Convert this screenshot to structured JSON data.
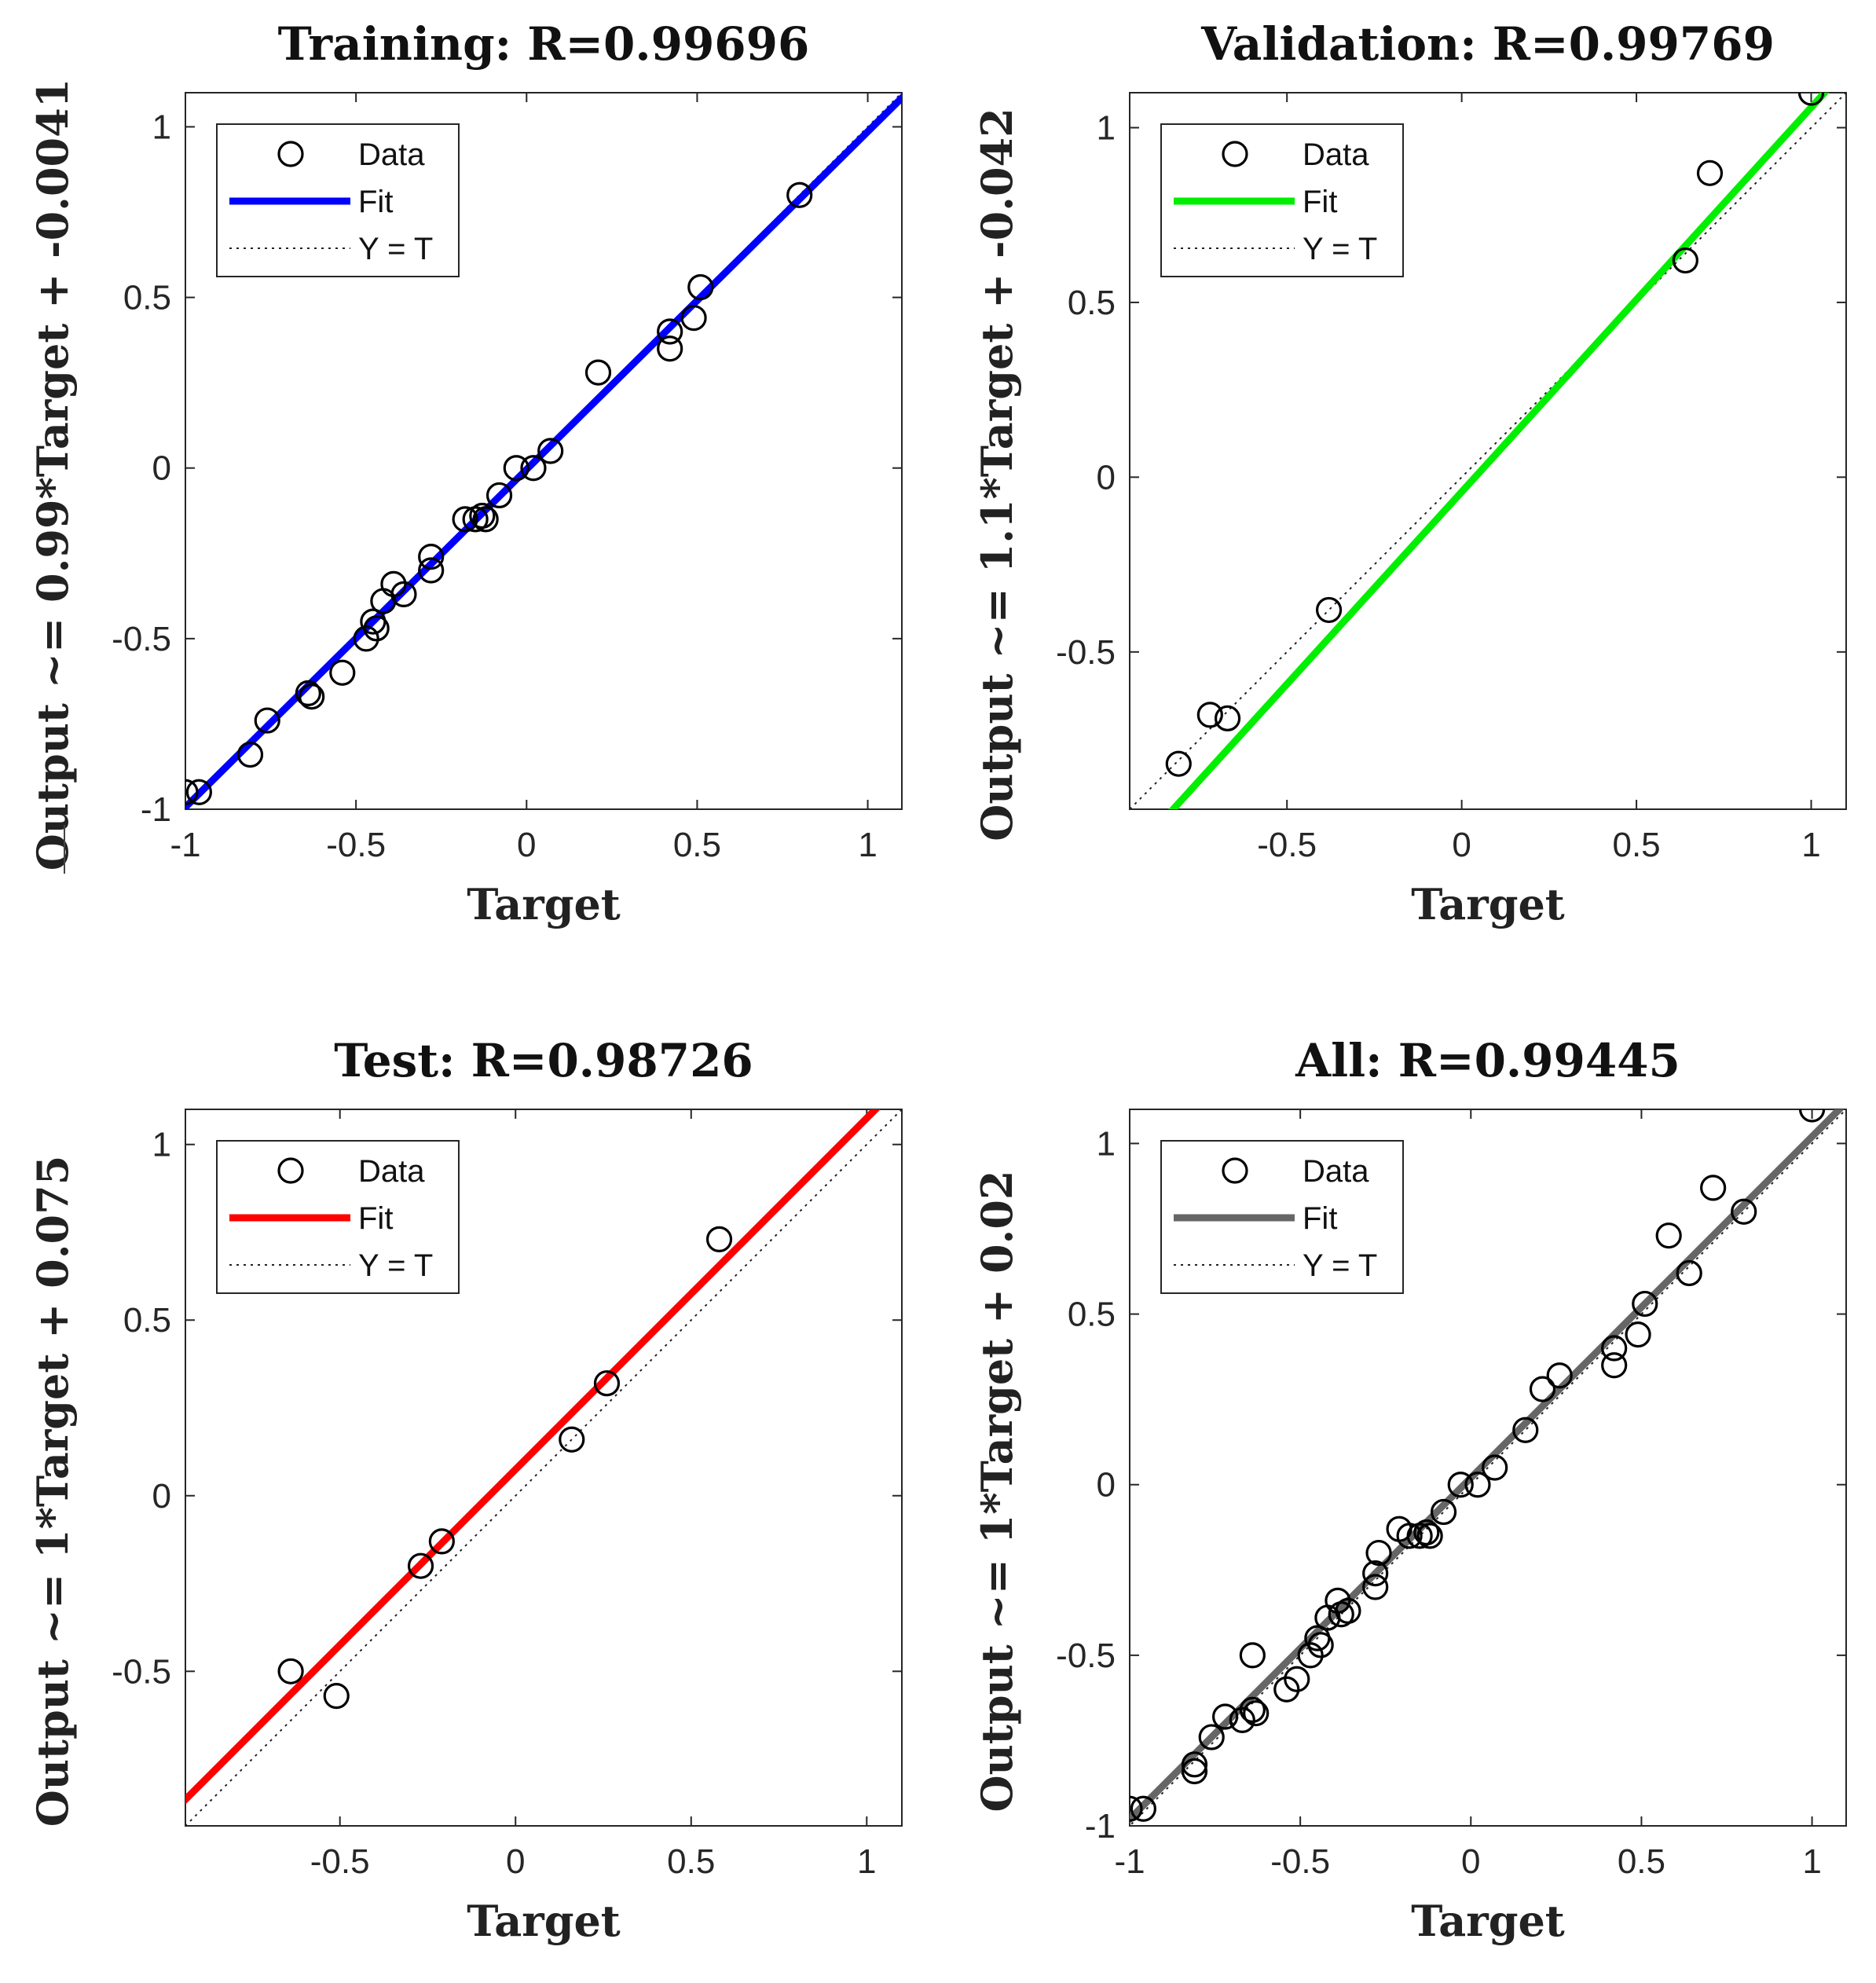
{
  "chart_data": [
    {
      "type": "scatter",
      "title": "Training: R=0.99696",
      "xlabel": "Target",
      "ylabel": "Output ~= 0.99*Target + -0.0041",
      "xlim": [
        -1,
        1.1
      ],
      "ylim": [
        -1,
        1.1
      ],
      "xticks": [
        -1,
        -0.5,
        0,
        0.5,
        1
      ],
      "yticks": [
        -1,
        -0.5,
        0,
        0.5,
        1
      ],
      "xtick_labels": [
        "-1",
        "-0.5",
        "0",
        "0.5",
        "1"
      ],
      "ytick_labels": [
        "-1",
        "-0.5",
        "0",
        "0.5",
        "1"
      ],
      "fit": {
        "slope": 0.99,
        "intercept": -0.0041,
        "color": "#0000ff"
      },
      "legend": {
        "placement": "top-left",
        "entries": [
          "Data",
          "Fit",
          "Y = T"
        ]
      },
      "points": [
        [
          -1.0,
          -0.95
        ],
        [
          -0.96,
          -0.95
        ],
        [
          -0.81,
          -0.84
        ],
        [
          -0.76,
          -0.74
        ],
        [
          -0.64,
          -0.66
        ],
        [
          -0.63,
          -0.67
        ],
        [
          -0.54,
          -0.6
        ],
        [
          -0.47,
          -0.5
        ],
        [
          -0.45,
          -0.45
        ],
        [
          -0.44,
          -0.47
        ],
        [
          -0.42,
          -0.39
        ],
        [
          -0.39,
          -0.34
        ],
        [
          -0.36,
          -0.37
        ],
        [
          -0.28,
          -0.26
        ],
        [
          -0.28,
          -0.3
        ],
        [
          -0.18,
          -0.15
        ],
        [
          -0.15,
          -0.15
        ],
        [
          -0.13,
          -0.14
        ],
        [
          -0.12,
          -0.15
        ],
        [
          -0.08,
          -0.08
        ],
        [
          -0.03,
          0.0
        ],
        [
          0.02,
          0.0
        ],
        [
          0.07,
          0.05
        ],
        [
          0.21,
          0.28
        ],
        [
          0.42,
          0.4
        ],
        [
          0.42,
          0.35
        ],
        [
          0.49,
          0.44
        ],
        [
          0.51,
          0.53
        ],
        [
          0.8,
          0.8
        ]
      ]
    },
    {
      "type": "scatter",
      "title": "Validation: R=0.99769",
      "xlabel": "Target",
      "ylabel": "Output ~= 1.1*Target + -0.042",
      "xlim": [
        -0.95,
        1.1
      ],
      "ylim": [
        -0.95,
        1.1
      ],
      "xticks": [
        -0.5,
        0,
        0.5,
        1
      ],
      "yticks": [
        -0.5,
        0,
        0.5,
        1
      ],
      "xtick_labels": [
        "-0.5",
        "0",
        "0.5",
        "1"
      ],
      "ytick_labels": [
        "-0.5",
        "0",
        "0.5",
        "1"
      ],
      "fit": {
        "slope": 1.1,
        "intercept": -0.042,
        "color": "#00ee00"
      },
      "legend": {
        "placement": "top-left",
        "entries": [
          "Data",
          "Fit",
          "Y = T"
        ]
      },
      "points": [
        [
          -0.81,
          -0.82
        ],
        [
          -0.72,
          -0.68
        ],
        [
          -0.67,
          -0.69
        ],
        [
          -0.38,
          -0.38
        ],
        [
          0.64,
          0.62
        ],
        [
          0.71,
          0.87
        ],
        [
          1.0,
          1.1
        ]
      ]
    },
    {
      "type": "scatter",
      "title": "Test: R=0.98726",
      "xlabel": "Target",
      "ylabel": "Output ~= 1*Target + 0.075",
      "xlim": [
        -0.94,
        1.1
      ],
      "ylim": [
        -0.94,
        1.1
      ],
      "xticks": [
        -0.5,
        0,
        0.5,
        1
      ],
      "yticks": [
        -0.5,
        0,
        0.5,
        1
      ],
      "xtick_labels": [
        "-0.5",
        "0",
        "0.5",
        "1"
      ],
      "ytick_labels": [
        "-0.5",
        "0",
        "0.5",
        "1"
      ],
      "fit": {
        "slope": 1.0,
        "intercept": 0.075,
        "color": "#ff0000"
      },
      "legend": {
        "placement": "top-left",
        "entries": [
          "Data",
          "Fit",
          "Y = T"
        ]
      },
      "points": [
        [
          -0.64,
          -0.5
        ],
        [
          -0.51,
          -0.57
        ],
        [
          -0.27,
          -0.2
        ],
        [
          -0.21,
          -0.13
        ],
        [
          0.16,
          0.16
        ],
        [
          0.26,
          0.32
        ],
        [
          0.58,
          0.73
        ]
      ]
    },
    {
      "type": "scatter",
      "title": "All: R=0.99445",
      "xlabel": "Target",
      "ylabel": "Output ~= 1*Target + 0.02",
      "xlim": [
        -1,
        1.1
      ],
      "ylim": [
        -1,
        1.1
      ],
      "xticks": [
        -1,
        -0.5,
        0,
        0.5,
        1
      ],
      "yticks": [
        -1,
        -0.5,
        0,
        0.5,
        1
      ],
      "xtick_labels": [
        "-1",
        "-0.5",
        "0",
        "0.5",
        "1"
      ],
      "ytick_labels": [
        "-1",
        "-0.5",
        "0",
        "0.5",
        "1"
      ],
      "fit": {
        "slope": 1.0,
        "intercept": 0.02,
        "color": "#666666"
      },
      "legend": {
        "placement": "top-left",
        "entries": [
          "Data",
          "Fit",
          "Y = T"
        ]
      },
      "points": [
        [
          -1.0,
          -0.95
        ],
        [
          -0.96,
          -0.95
        ],
        [
          -0.81,
          -0.82
        ],
        [
          -0.81,
          -0.84
        ],
        [
          -0.76,
          -0.74
        ],
        [
          -0.72,
          -0.68
        ],
        [
          -0.67,
          -0.69
        ],
        [
          -0.64,
          -0.5
        ],
        [
          -0.64,
          -0.66
        ],
        [
          -0.63,
          -0.67
        ],
        [
          -0.54,
          -0.6
        ],
        [
          -0.51,
          -0.57
        ],
        [
          -0.47,
          -0.5
        ],
        [
          -0.45,
          -0.45
        ],
        [
          -0.44,
          -0.47
        ],
        [
          -0.42,
          -0.39
        ],
        [
          -0.39,
          -0.34
        ],
        [
          -0.38,
          -0.38
        ],
        [
          -0.36,
          -0.37
        ],
        [
          -0.28,
          -0.26
        ],
        [
          -0.28,
          -0.3
        ],
        [
          -0.27,
          -0.2
        ],
        [
          -0.21,
          -0.13
        ],
        [
          -0.18,
          -0.15
        ],
        [
          -0.15,
          -0.15
        ],
        [
          -0.13,
          -0.14
        ],
        [
          -0.12,
          -0.15
        ],
        [
          -0.08,
          -0.08
        ],
        [
          -0.03,
          0.0
        ],
        [
          0.02,
          0.0
        ],
        [
          0.07,
          0.05
        ],
        [
          0.16,
          0.16
        ],
        [
          0.21,
          0.28
        ],
        [
          0.26,
          0.32
        ],
        [
          0.42,
          0.4
        ],
        [
          0.42,
          0.35
        ],
        [
          0.49,
          0.44
        ],
        [
          0.51,
          0.53
        ],
        [
          0.58,
          0.73
        ],
        [
          0.64,
          0.62
        ],
        [
          0.71,
          0.87
        ],
        [
          0.8,
          0.8
        ],
        [
          1.0,
          1.1
        ]
      ]
    }
  ]
}
